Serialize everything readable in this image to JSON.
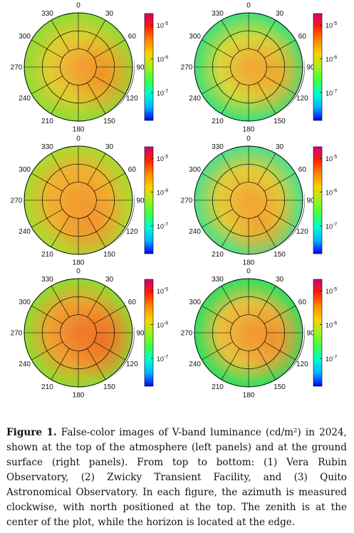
{
  "figure": {
    "azimuth_labels": [
      "0",
      "30",
      "60",
      "90",
      "120",
      "150",
      "180",
      "210",
      "240",
      "270",
      "300",
      "330"
    ],
    "colorbar_ticks": [
      {
        "base": "10",
        "exp": "-5",
        "value": 1e-05
      },
      {
        "base": "10",
        "exp": "-6",
        "value": 1e-06
      },
      {
        "base": "10",
        "exp": "-7",
        "value": 1e-07
      }
    ],
    "colorbar_range": [
      1.5e-08,
      2.2e-05
    ],
    "colors": {
      "scale": [
        "#0000ff",
        "#00b4ff",
        "#00ffd0",
        "#40ff40",
        "#a0f020",
        "#ffd000",
        "#ff8800",
        "#ff2000",
        "#d0007a"
      ],
      "rim_dark": "#000000"
    },
    "panels": [
      {
        "id": "rubin-toa",
        "center_color": "#f5a638",
        "mid_color": "#e0cc30",
        "edge_color": "#8fdc35",
        "hot_color": "#f38a25",
        "hot_side": "east"
      },
      {
        "id": "rubin-ground",
        "center_color": "#f4a83a",
        "mid_color": "#d6d83a",
        "edge_color": "#3fe07a",
        "hot_color": "#f3a030",
        "hot_side": "east"
      },
      {
        "id": "ztf-toa",
        "center_color": "#f4a030",
        "mid_color": "#f0b030",
        "edge_color": "#a8dc30",
        "hot_color": "#f39030",
        "hot_side": "south"
      },
      {
        "id": "ztf-ground",
        "center_color": "#f4a83a",
        "mid_color": "#e3cc38",
        "edge_color": "#50e08a",
        "hot_color": "#f3a030",
        "hot_side": "south"
      },
      {
        "id": "quito-toa",
        "center_color": "#f08030",
        "mid_color": "#f0a030",
        "edge_color": "#90dc30",
        "hot_color": "#ec6a25",
        "hot_side": "east"
      },
      {
        "id": "quito-ground",
        "center_color": "#f4a030",
        "mid_color": "#e8c040",
        "edge_color": "#30e060",
        "hot_color": "#f08a30",
        "hot_side": "east"
      }
    ]
  },
  "caption": {
    "label": "Figure 1.",
    "text": " False-color images of V-band luminance (cd/m²) in 2024, shown at the top of the atmosphere (left panels) and at the ground surface (right panels). From top to bottom: (1) Vera Rubin Observatory, (2) Zwicky Transient Facility, and (3) Quito Astronomical Observatory. In each figure, the azimuth is measured clockwise, with north positioned at the top. The zenith is at the center of the plot, while the horizon is located at the edge."
  }
}
